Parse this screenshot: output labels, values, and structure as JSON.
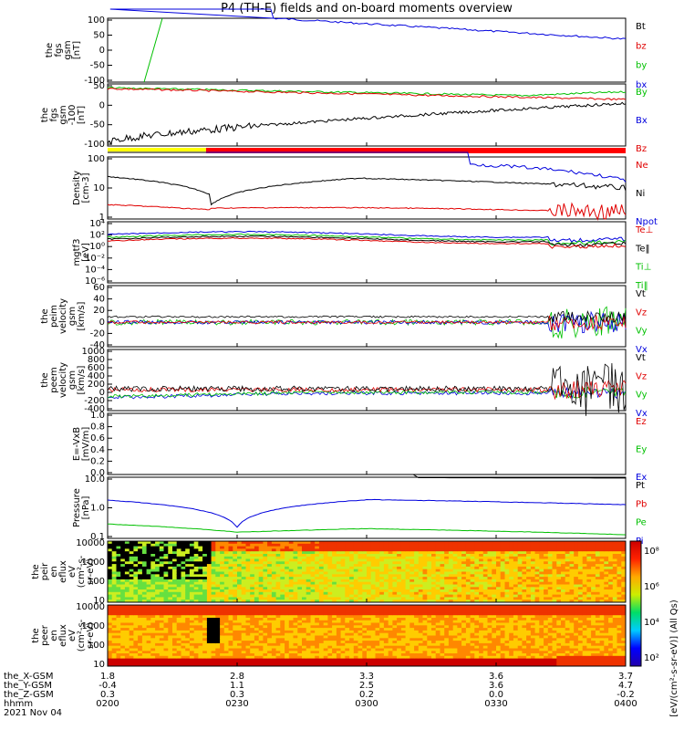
{
  "title": "P4 (TH-E) fields and on-board moments overview",
  "colors": {
    "black": "#000000",
    "red": "#e00000",
    "green": "#00c000",
    "blue": "#0000dd"
  },
  "panels": [
    {
      "id": "fgs",
      "ylabel": [
        "the",
        "fgs",
        "gsm",
        "[nT]"
      ],
      "ticks": [
        "100",
        "50",
        "0",
        "-50",
        "-100"
      ],
      "legend": [
        {
          "text": "Bt",
          "color": "#000000"
        },
        {
          "text": "bz",
          "color": "#e00000"
        },
        {
          "text": "by",
          "color": "#00c000"
        },
        {
          "text": "bx",
          "color": "#0000dd"
        }
      ]
    },
    {
      "id": "fgs_dc",
      "ylabel": [
        "the",
        "fgs",
        "gsm",
        "-100",
        "[nT]"
      ],
      "ticks": [
        "50",
        "0",
        "-50",
        "-100"
      ],
      "legend": [
        {
          "text": "By",
          "color": "#00c000"
        },
        {
          "text": "Bx",
          "color": "#0000dd"
        },
        {
          "text": "Bz",
          "color": "#e00000"
        }
      ]
    },
    {
      "id": "density",
      "ylabel": [
        "Density",
        "[cm-3]"
      ],
      "ticks": [
        "100",
        "10",
        "1"
      ],
      "legend": [
        {
          "text": "Ne",
          "color": "#e00000"
        },
        {
          "text": "Ni",
          "color": "#000000"
        },
        {
          "text": "Npot",
          "color": "#0000dd"
        }
      ]
    },
    {
      "id": "temp",
      "ylabel": [
        "mgtf3",
        "[eV]"
      ],
      "ticks": [
        "10⁴",
        "10²",
        "10⁰",
        "10⁻²",
        "10⁻⁴",
        "10⁻⁶"
      ],
      "legend": [
        {
          "text": "Te⊥",
          "color": "#e00000"
        },
        {
          "text": "Te‖",
          "color": "#000000"
        },
        {
          "text": "Ti⊥",
          "color": "#00c000"
        },
        {
          "text": "Ti‖",
          "color": "#00c000"
        }
      ]
    },
    {
      "id": "peim",
      "ylabel": [
        "the",
        "peim",
        "velocity",
        "gsm",
        "[km/s]"
      ],
      "ticks": [
        "60",
        "40",
        "20",
        "0",
        "-20",
        "-40"
      ],
      "legend": [
        {
          "text": "Vt",
          "color": "#000000"
        },
        {
          "text": "Vz",
          "color": "#e00000"
        },
        {
          "text": "Vy",
          "color": "#00c000"
        },
        {
          "text": "Vx",
          "color": "#0000dd"
        }
      ]
    },
    {
      "id": "peem",
      "ylabel": [
        "the",
        "peem",
        "velocity",
        "gsm",
        "[km/s]"
      ],
      "ticks": [
        "1000",
        "800",
        "600",
        "400",
        "200",
        "0",
        "-200",
        "-400"
      ],
      "legend": [
        {
          "text": "Vt",
          "color": "#000000"
        },
        {
          "text": "Vz",
          "color": "#e00000"
        },
        {
          "text": "Vy",
          "color": "#00c000"
        },
        {
          "text": "Vx",
          "color": "#0000dd"
        }
      ]
    },
    {
      "id": "efield",
      "ylabel": [
        "E=-VxB",
        "[mV/m]"
      ],
      "ticks": [
        "1.0",
        "0.8",
        "0.6",
        "0.4",
        "0.2",
        "0.0"
      ],
      "legend": [
        {
          "text": "Ez",
          "color": "#e00000"
        },
        {
          "text": "Ey",
          "color": "#00c000"
        },
        {
          "text": "Ex",
          "color": "#0000dd"
        }
      ]
    },
    {
      "id": "pressure",
      "ylabel": [
        "Pressure",
        "[nPa]"
      ],
      "ticks": [
        "10.0",
        "1.0",
        "0.1"
      ],
      "legend": [
        {
          "text": "Pt",
          "color": "#000000"
        },
        {
          "text": "Pb",
          "color": "#e00000"
        },
        {
          "text": "Pe",
          "color": "#00c000"
        },
        {
          "text": "Pi",
          "color": "#0000dd"
        }
      ]
    },
    {
      "id": "peir",
      "ylabel": [
        "the",
        "peir",
        "en",
        "eflux",
        "eV",
        "(cm²-s-",
        "sr-eV)"
      ],
      "ticks": [
        "10000",
        "1000",
        "100",
        "10"
      ]
    },
    {
      "id": "peer",
      "ylabel": [
        "the",
        "peer",
        "en",
        "eflux",
        "eV",
        "(cm²-s-",
        "sr-eV)"
      ],
      "ticks": [
        "10000",
        "1000",
        "100",
        "10"
      ]
    }
  ],
  "colorbar": {
    "ticks": [
      "10⁸",
      "10⁶",
      "10⁴",
      "10²"
    ],
    "label": "[eV/(cm²-s-sr-eV)] (All Qs)"
  },
  "xaxis": {
    "rows": [
      {
        "label": "the_X-GSM",
        "values": [
          "1.8",
          "2.8",
          "3.3",
          "3.6",
          "3.7"
        ]
      },
      {
        "label": "the_Y-GSM",
        "values": [
          "-0.4",
          "1.1",
          "2.5",
          "3.6",
          "4.7"
        ]
      },
      {
        "label": "the_Z-GSM",
        "values": [
          "0.3",
          "0.3",
          "0.2",
          "0.0",
          "-0.2"
        ]
      },
      {
        "label": "hhmm",
        "values": [
          "0200",
          "0230",
          "0300",
          "0330",
          "0400"
        ]
      }
    ],
    "date": "2021 Nov 04"
  },
  "chart_data": {
    "type": "line",
    "x": [
      "0200",
      "0230",
      "0300",
      "0330",
      "0400"
    ],
    "series": [
      {
        "name": "Bt",
        "panel": "fgs",
        "values": [
          null,
          null,
          100,
          60,
          35
        ]
      },
      {
        "name": "By",
        "panel": "fgs_dc",
        "values": [
          40,
          20,
          20,
          18,
          30
        ]
      },
      {
        "name": "Bz",
        "panel": "fgs_dc",
        "values": [
          38,
          18,
          10,
          10,
          10
        ]
      },
      {
        "name": "Bx",
        "panel": "fgs_dc",
        "values": [
          -95,
          -60,
          -35,
          -20,
          -5
        ]
      },
      {
        "name": "Ni",
        "panel": "density",
        "values": [
          30,
          2,
          25,
          20,
          8
        ]
      },
      {
        "name": "Ne",
        "panel": "density",
        "values": [
          1.5,
          1.0,
          1.5,
          1.2,
          0.8
        ]
      },
      {
        "name": "Npot",
        "panel": "density",
        "values": [
          null,
          null,
          null,
          100,
          15
        ]
      },
      {
        "name": "Pi",
        "panel": "pressure",
        "values": [
          1.5,
          0.07,
          1.6,
          1.2,
          0.9
        ]
      },
      {
        "name": "Pe",
        "panel": "pressure",
        "values": [
          0.1,
          0.04,
          0.06,
          0.05,
          0.03
        ]
      }
    ]
  }
}
